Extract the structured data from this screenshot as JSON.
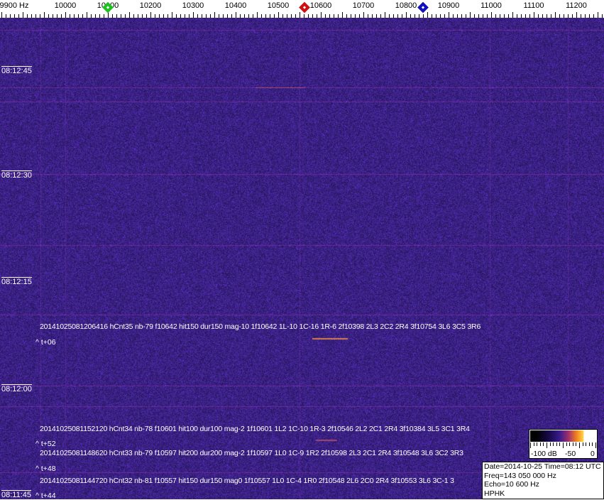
{
  "frequency_axis": {
    "labels": [
      "9900 Hz",
      "10000",
      "10100",
      "10200",
      "10300",
      "10400",
      "10500",
      "10600",
      "10700",
      "10800",
      "10900",
      "11000",
      "11100",
      "11200"
    ],
    "values": [
      9900,
      10000,
      10100,
      10200,
      10300,
      10400,
      10500,
      10600,
      10700,
      10800,
      10900,
      11000,
      11100,
      11200
    ],
    "markers": [
      {
        "color": "#1fc01f",
        "freq": 10100
      },
      {
        "color": "#d01010",
        "freq": 10562
      },
      {
        "color": "#1010c0",
        "freq": 10840
      }
    ]
  },
  "time_labels": [
    "08:12:45",
    "08:12:30",
    "08:12:15",
    "08:12:00",
    "08:11:45"
  ],
  "events": [
    {
      "text": "20141025081206416 hCnt35 nb-79 f10642 hit150 dur150 mag-10 1f10642 1L-10 1C-16 1R-6 2f10398 2L3 2C2 2R4 3f10754 3L6 3C5 3R6",
      "offset": "^ t+06"
    },
    {
      "text": "20141025081152120 hCnt34 nb-78 f10601 hit100 dur100 mag-2 1f10601 1L2 1C-10 1R-3 2f10546 2L2 2C1 2R4 3f10384 3L5 3C1 3R4",
      "offset": "^ t+52"
    },
    {
      "text": "20141025081148620 hCnt33 nb-79 f10597 hit200 dur200 mag-2 1f10597 1L0 1C-9 1R2 2f10598 2L3 2C1 2R4 3f10548 3L6 3C2 3R3",
      "offset": "^ t+48"
    },
    {
      "text": "20141025081144720 hCnt32 nb-81 f10557 hit150 dur150 mag0 1f10557 1L0 1C-4 1R0 2f10548 2L6 2C0 2R4 3f10553 3L6 3C-1 3",
      "offset": "^ t+44"
    }
  ],
  "color_scale": {
    "labels": [
      "-100 dB",
      "-50",
      "0"
    ]
  },
  "info": {
    "line1": "Date=2014-10-25 Time=08:12 UTC",
    "line2": "Freq=143 050 000 Hz",
    "line3": "Echo=10 600 Hz",
    "line4": "HPHK"
  }
}
